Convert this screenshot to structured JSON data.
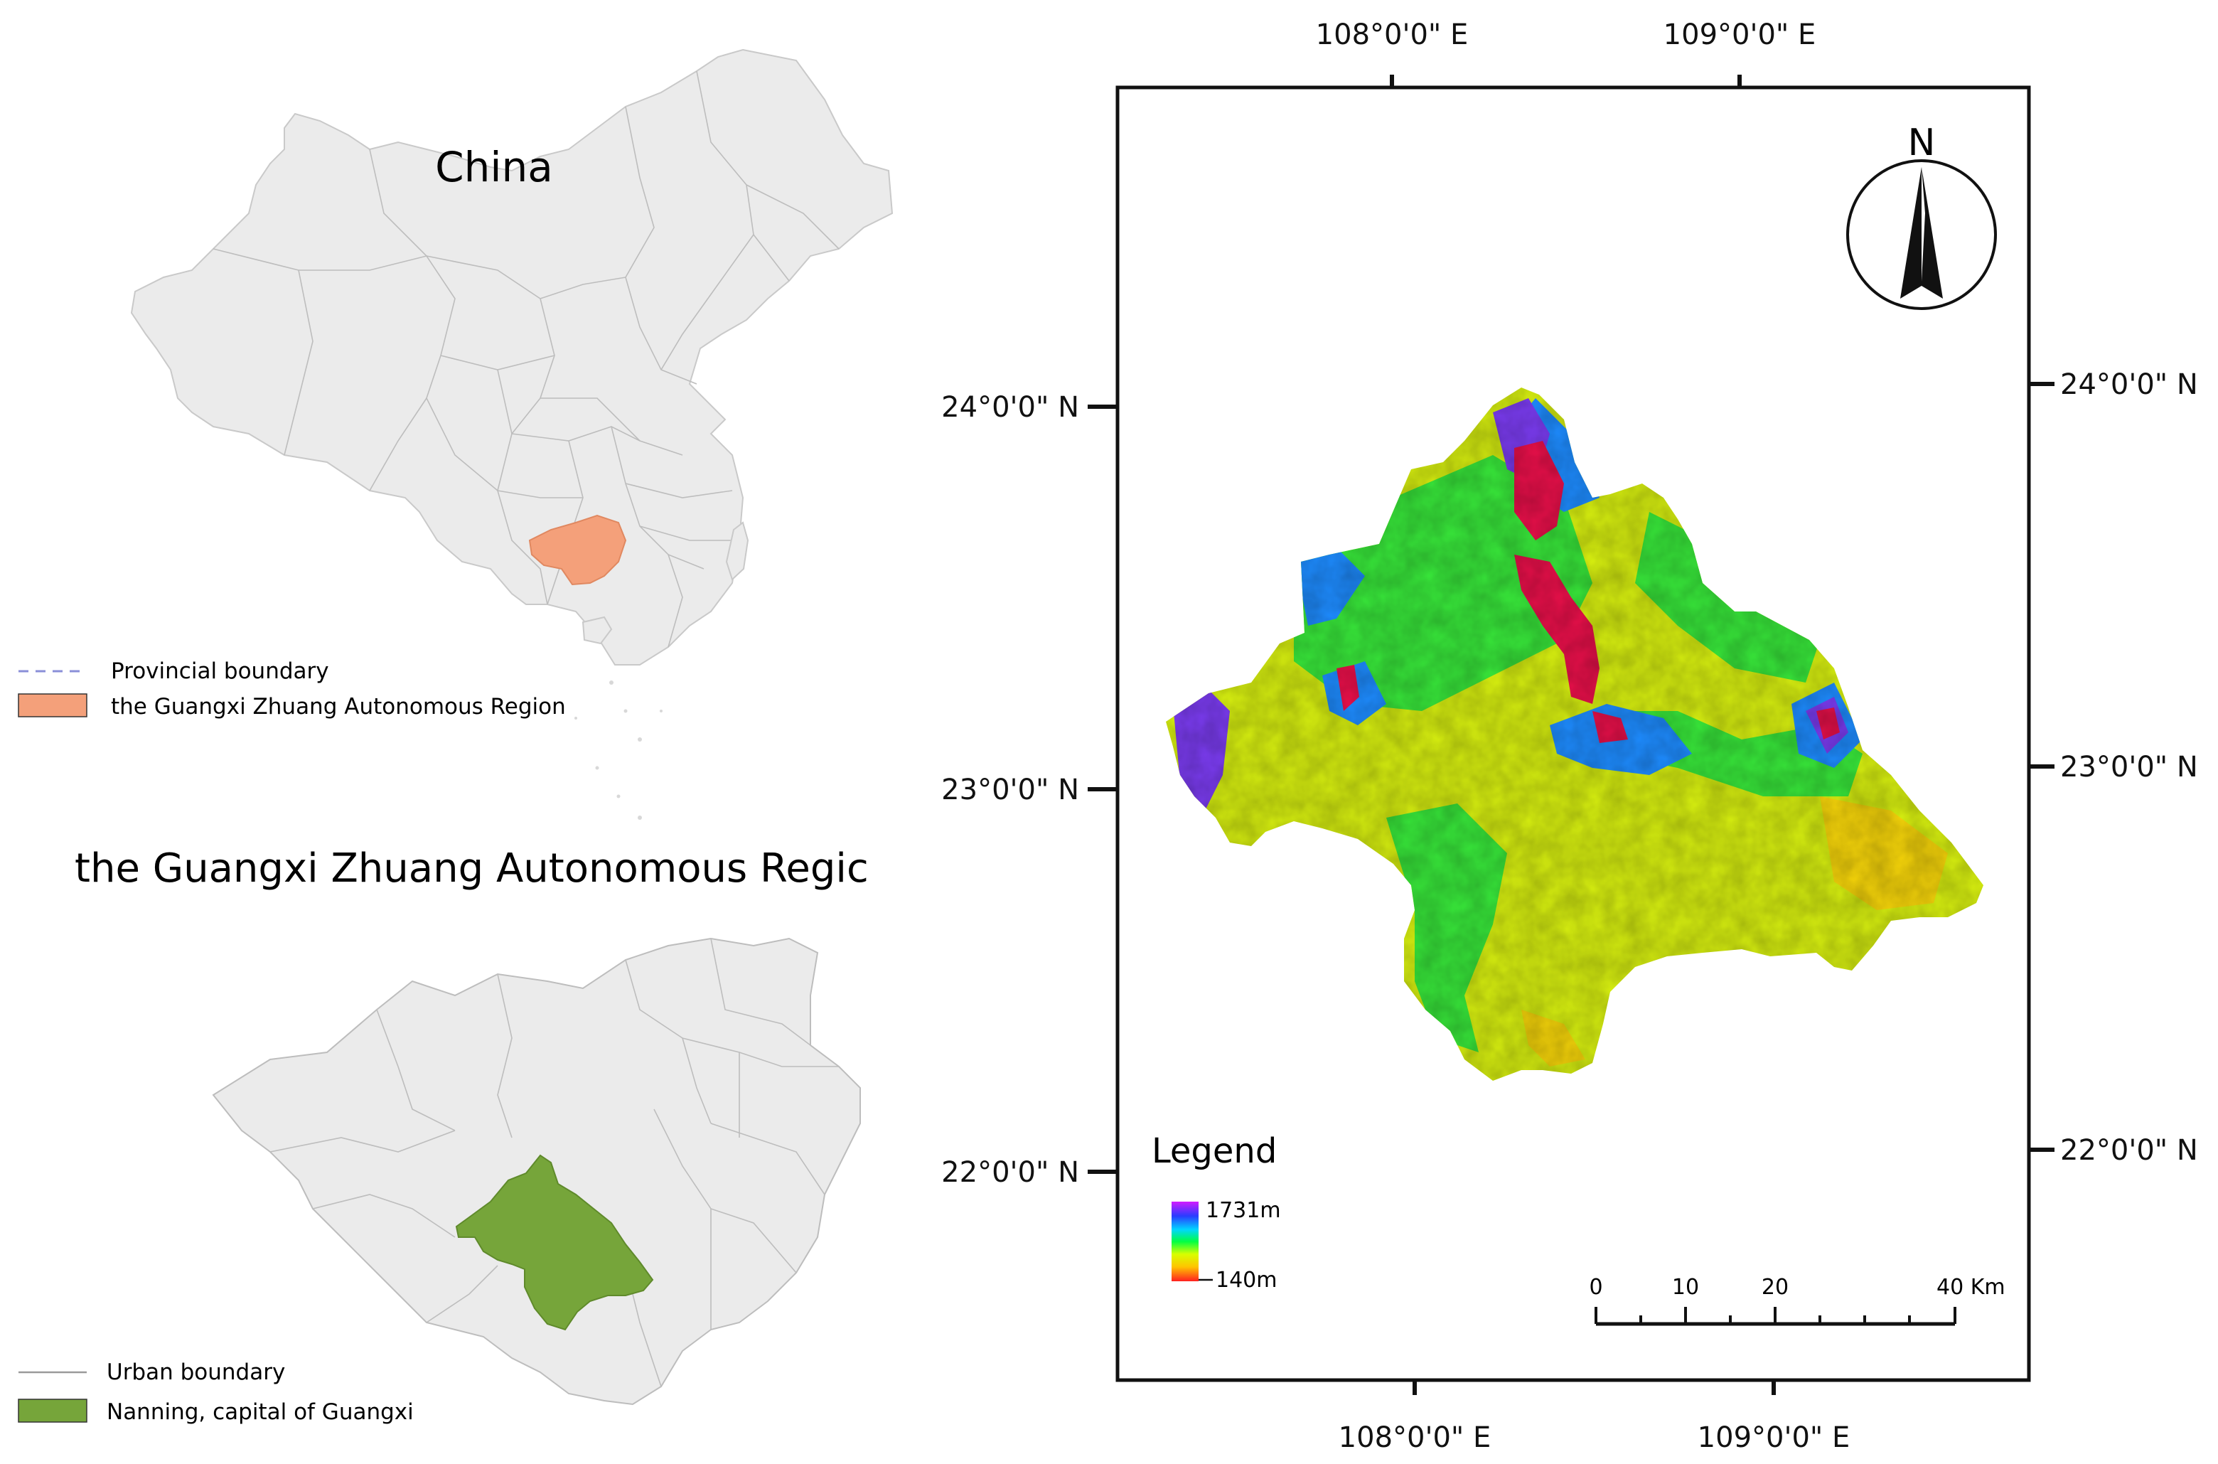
{
  "china_panel": {
    "title": "China",
    "legend": [
      {
        "symbol": "dashed-line-icon",
        "label": "Provincial boundary"
      },
      {
        "symbol": "orange-swatch-icon",
        "label": "the Guangxi Zhuang Autonomous Region"
      }
    ],
    "highlight_color": "#f4a07a",
    "land_color": "#ebebeb"
  },
  "guangxi_panel": {
    "title": "the Guangxi Zhuang Autonomous Regic",
    "legend": [
      {
        "symbol": "solid-line-icon",
        "label": "Urban boundary"
      },
      {
        "symbol": "green-swatch-icon",
        "label": "Nanning, capital of Guangxi"
      }
    ],
    "highlight_color": "#76a53a",
    "land_color": "#ebebeb"
  },
  "nanning_map": {
    "top_longitudes": [
      "108°0'0\" E",
      "109°0'0\" E"
    ],
    "bottom_longitudes": [
      "108°0'0\" E",
      "109°0'0\" E"
    ],
    "left_latitudes": [
      "24°0'0\" N",
      "23°0'0\" N",
      "22°0'0\" N"
    ],
    "right_latitudes": [
      "24°0'0\" N",
      "23°0'0\" N",
      "22°0'0\" N"
    ],
    "north_arrow": "N",
    "legend": {
      "title": "Legend",
      "max_label": "1731m",
      "min_label": "140m",
      "ramp_colors": [
        "#d21cff",
        "#2a3cff",
        "#00d6ff",
        "#00ff44",
        "#d8ff00",
        "#ffc400",
        "#ff2020"
      ]
    },
    "scale_bar": {
      "ticks": [
        "0",
        "10",
        "20",
        "40 Km"
      ]
    },
    "elevation_colors": {
      "peak": "#e8104a",
      "high": "#7b3cf0",
      "mid_high": "#1e8cff",
      "mid": "#38e63a",
      "low": "#d6ee10",
      "lowest": "#f5d40a"
    }
  }
}
